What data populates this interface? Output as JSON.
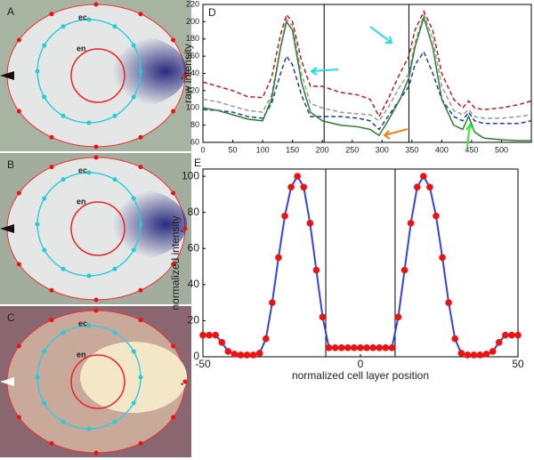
{
  "panels": [
    {
      "label": "A",
      "ec": "ec",
      "en": "en",
      "star": "*"
    },
    {
      "label": "B",
      "ec": "ec",
      "en": "en",
      "star": "*"
    },
    {
      "label": "C",
      "ec": "ec",
      "en": "en",
      "star": "*"
    }
  ],
  "chart_data": [
    {
      "type": "line",
      "panel_label": "D",
      "ylabel": "raw intensity",
      "x": [
        0,
        25,
        50,
        75,
        100,
        115,
        130,
        140,
        150,
        165,
        180,
        200,
        230,
        260,
        280,
        295,
        310,
        330,
        345,
        355,
        370,
        385,
        400,
        420,
        435,
        445,
        455,
        470,
        500,
        530,
        550
      ],
      "series": [
        {
          "color": "#b22222",
          "dash": true,
          "values": [
            130,
            125,
            120,
            113,
            112,
            135,
            185,
            208,
            200,
            155,
            125,
            125,
            118,
            115,
            110,
            90,
            110,
            140,
            160,
            190,
            212,
            190,
            140,
            110,
            100,
            108,
            100,
            98,
            100,
            104,
            108
          ]
        },
        {
          "color": "#999999",
          "dash": true,
          "values": [
            110,
            107,
            102,
            97,
            95,
            115,
            170,
            203,
            195,
            140,
            105,
            100,
            95,
            93,
            92,
            85,
            100,
            125,
            140,
            175,
            208,
            180,
            125,
            97,
            92,
            98,
            90,
            88,
            88,
            90,
            92
          ]
        },
        {
          "color": "#1f3fa0",
          "dash": true,
          "values": [
            98,
            97,
            95,
            90,
            88,
            105,
            140,
            160,
            150,
            115,
            90,
            90,
            90,
            88,
            85,
            75,
            90,
            110,
            125,
            150,
            165,
            140,
            110,
            90,
            85,
            95,
            85,
            82,
            82,
            82,
            85
          ]
        },
        {
          "color": "#2e7d32",
          "dash": false,
          "values": [
            100,
            97,
            92,
            87,
            85,
            110,
            170,
            200,
            190,
            130,
            95,
            85,
            80,
            78,
            75,
            68,
            85,
            110,
            135,
            170,
            205,
            170,
            110,
            80,
            75,
            90,
            72,
            65,
            63,
            62,
            62
          ]
        }
      ],
      "vlines": [
        203,
        345
      ],
      "xlim": [
        0,
        550
      ],
      "ylim": [
        60,
        220
      ],
      "xticks": [
        0,
        50,
        100,
        150,
        200,
        250,
        300,
        350,
        400,
        450,
        500
      ],
      "yticks": [
        60,
        80,
        100,
        120,
        140,
        160,
        180,
        200,
        220
      ]
    },
    {
      "type": "dotline",
      "panel_label": "E",
      "xlabel": "normalized cell layer position",
      "ylabel": "normalized intensity",
      "x": [
        -50,
        -48,
        -46,
        -44,
        -42,
        -40,
        -38,
        -36,
        -34,
        -32,
        -30,
        -28,
        -26,
        -24,
        -22,
        -20,
        -18,
        -16,
        -14,
        -12,
        -10,
        -8,
        -6,
        -4,
        -2,
        0,
        2,
        4,
        6,
        8,
        10,
        12,
        14,
        16,
        18,
        20,
        22,
        24,
        26,
        28,
        30,
        32,
        34,
        36,
        38,
        40,
        42,
        44,
        46,
        48,
        50
      ],
      "values": [
        12,
        12,
        12,
        8,
        3,
        1.5,
        1,
        1,
        1,
        2,
        10,
        30,
        55,
        78,
        94,
        100,
        94,
        74,
        48,
        22,
        5,
        5,
        5,
        5,
        5,
        5,
        5,
        5,
        5,
        5,
        5,
        22,
        48,
        74,
        94,
        100,
        94,
        78,
        55,
        30,
        10,
        2,
        1,
        1,
        1,
        1.5,
        3,
        8,
        12,
        12,
        12
      ],
      "line_color": "#3344dd",
      "dot_color": "#ee1111",
      "vlines": [
        -11,
        11
      ],
      "xlim": [
        -50,
        50
      ],
      "ylim": [
        0,
        104
      ],
      "xticks": [
        -50,
        0,
        50
      ],
      "yticks": [
        0,
        20,
        40,
        60,
        80,
        100
      ]
    }
  ]
}
